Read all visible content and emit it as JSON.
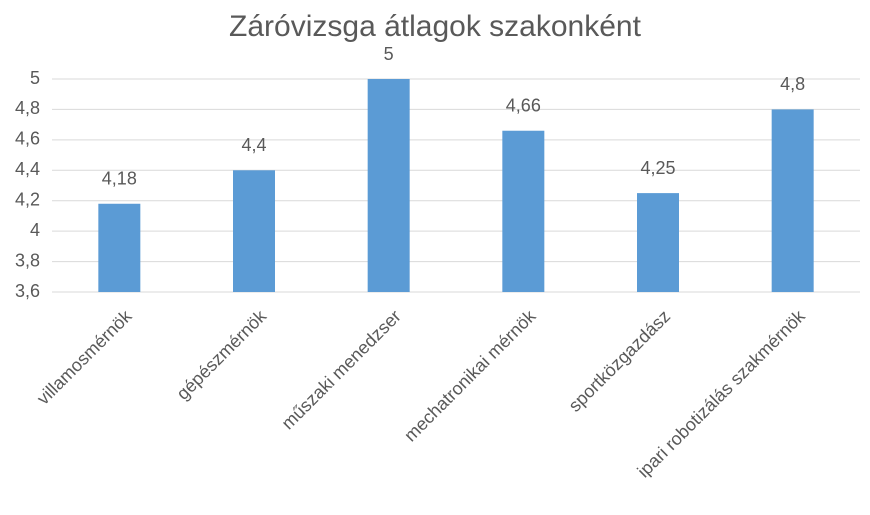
{
  "chart_data": {
    "type": "bar",
    "title": "Záróvizsga átlagok szakonként",
    "categories": [
      "villamosmérnök",
      "gépészmérnök",
      "műszaki menedzser",
      "mechatronikai mérnök",
      "sportközgazdász",
      "ipari robotizálás szakmérnök"
    ],
    "values": [
      4.18,
      4.4,
      5,
      4.66,
      4.25,
      4.8
    ],
    "value_labels": [
      "4,18",
      "4,4",
      "5",
      "4,66",
      "4,25",
      "4,8"
    ],
    "color": "#5b9bd5",
    "ylim": [
      3.6,
      5
    ],
    "yticks": [
      {
        "value": 3.6,
        "label": "3,6"
      },
      {
        "value": 3.8,
        "label": "3,8"
      },
      4,
      {
        "value": 4.2,
        "label": "4,2"
      },
      {
        "value": 4.4,
        "label": "4,4"
      },
      {
        "value": 4.6,
        "label": "4,6"
      },
      {
        "value": 4.8,
        "label": "4,8"
      },
      5
    ],
    "grid": true
  }
}
